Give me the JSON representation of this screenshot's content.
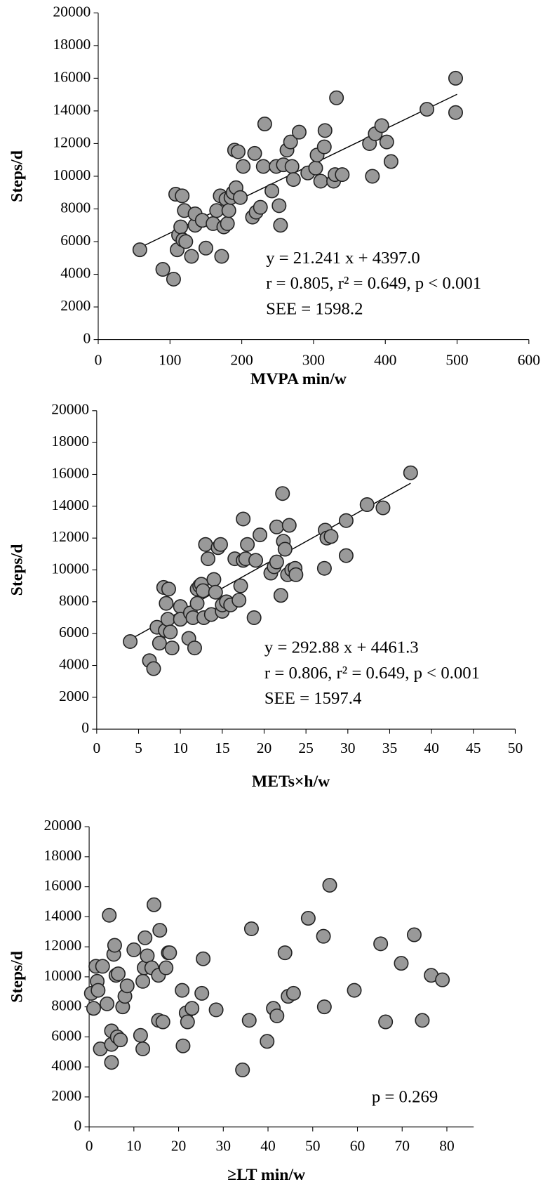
{
  "chart_data": [
    {
      "type": "scatter",
      "x_label": "MVPA min/w",
      "y_label": "Steps/d",
      "annotations": [
        "y = 21.241 x + 4397.0",
        "r = 0.805, r² = 0.649, p < 0.001",
        "SEE = 1598.2"
      ],
      "color": "#999999",
      "xlim": [
        0,
        600
      ],
      "xticks": [
        0,
        100,
        200,
        300,
        400,
        500,
        600
      ],
      "ylim": [
        0,
        20000
      ],
      "yticks": [
        0,
        2000,
        4000,
        6000,
        8000,
        10000,
        12000,
        14000,
        16000,
        18000,
        20000
      ],
      "trendline": {
        "slope": 21.241,
        "intercept": 4397.0,
        "x": [
          58,
          500
        ]
      },
      "x": [
        58,
        90,
        105,
        108,
        110,
        112,
        115,
        117,
        120,
        118,
        122,
        130,
        135,
        135,
        145,
        150,
        160,
        165,
        170,
        172,
        175,
        178,
        180,
        182,
        185,
        188,
        190,
        192,
        195,
        198,
        202,
        215,
        218,
        220,
        226,
        230,
        232,
        242,
        248,
        252,
        254,
        258,
        263,
        268,
        270,
        272,
        280,
        292,
        303,
        305,
        310,
        315,
        316,
        328,
        330,
        332,
        340,
        378,
        382,
        386,
        395,
        402,
        408,
        458,
        498,
        498
      ],
      "values": [
        5500,
        4300,
        3700,
        8900,
        5500,
        6400,
        6900,
        8800,
        7900,
        6100,
        6000,
        5100,
        7000,
        7700,
        7300,
        5600,
        7100,
        7900,
        8800,
        5100,
        6900,
        8600,
        7100,
        7900,
        8700,
        9000,
        11600,
        9300,
        11500,
        8700,
        10600,
        7500,
        11400,
        7800,
        8100,
        10600,
        13200,
        9100,
        10600,
        8200,
        7000,
        10700,
        11600,
        12100,
        10600,
        9800,
        12700,
        10200,
        10500,
        11300,
        9700,
        11800,
        12800,
        9700,
        10100,
        14800,
        10100,
        12000,
        10000,
        12600,
        13100,
        12100,
        10900,
        14100,
        16000,
        13900
      ]
    },
    {
      "type": "scatter",
      "x_label": "METs×h/w",
      "y_label": "Steps/d",
      "annotations": [
        "y = 292.88 x + 4461.3",
        "r = 0.806, r² = 0.649, p < 0.001",
        "SEE = 1597.4"
      ],
      "color": "#999999",
      "xlim": [
        0,
        50
      ],
      "xticks": [
        0,
        5,
        10,
        15,
        20,
        25,
        30,
        35,
        40,
        45,
        50
      ],
      "ylim": [
        0,
        20000
      ],
      "yticks": [
        0,
        2000,
        4000,
        6000,
        8000,
        10000,
        12000,
        14000,
        16000,
        18000,
        20000
      ],
      "trendline": {
        "slope": 292.88,
        "intercept": 4461.3,
        "x": [
          4,
          37.5
        ]
      },
      "x": [
        4,
        6.3,
        6.8,
        7.2,
        7.5,
        8,
        8.2,
        8.3,
        8.5,
        8.6,
        8.8,
        9,
        10,
        10,
        11,
        11.2,
        11.5,
        11.7,
        12,
        12,
        12.3,
        12.5,
        12.8,
        12.7,
        13,
        13.3,
        13.7,
        14,
        14.2,
        14.5,
        14.8,
        15,
        15,
        15.5,
        16,
        16.5,
        17,
        17.2,
        17.5,
        17.5,
        17.8,
        18,
        18.8,
        19,
        19.5,
        20.8,
        21.2,
        21.5,
        21.5,
        22,
        22.2,
        22.3,
        22.5,
        22.8,
        23,
        23.3,
        23.7,
        23.8,
        27.2,
        27.3,
        27.5,
        28,
        29.8,
        29.8,
        32.3,
        34.2,
        37.5
      ],
      "values": [
        5500,
        4300,
        3800,
        6400,
        5400,
        8900,
        6200,
        7900,
        6900,
        8800,
        6100,
        5100,
        7700,
        6900,
        5700,
        7300,
        7000,
        5100,
        7900,
        8800,
        9000,
        9100,
        7000,
        8700,
        11600,
        10700,
        7200,
        9400,
        8600,
        11400,
        11600,
        7400,
        7800,
        8000,
        7800,
        10700,
        8100,
        9000,
        10600,
        13200,
        10700,
        11600,
        7000,
        10600,
        12200,
        9800,
        10200,
        12700,
        10500,
        8400,
        14800,
        11800,
        11300,
        9700,
        12800,
        10000,
        10100,
        9700,
        10100,
        12500,
        12000,
        12100,
        13100,
        10900,
        14100,
        13900,
        16100
      ]
    },
    {
      "type": "scatter",
      "x_label": "≥LT  min/w",
      "y_label": "Steps/d",
      "annotations": [
        "p = 0.269"
      ],
      "color": "#999999",
      "xlim": [
        0,
        86
      ],
      "xticks": [
        0,
        10,
        20,
        30,
        40,
        50,
        60,
        70,
        80
      ],
      "ylim": [
        0,
        20000
      ],
      "yticks": [
        0,
        2000,
        4000,
        6000,
        8000,
        10000,
        12000,
        14000,
        16000,
        18000,
        20000
      ],
      "x": [
        0.5,
        1,
        1.5,
        1.8,
        2,
        2.5,
        3,
        4,
        4.5,
        5,
        5,
        5,
        5.5,
        5.7,
        6,
        6.3,
        6.5,
        7,
        7.5,
        8,
        8.5,
        10,
        11.5,
        12,
        12,
        12.3,
        12.5,
        13,
        14,
        14.5,
        15.5,
        15.5,
        15.8,
        16.5,
        17.2,
        17.7,
        18,
        20.8,
        21,
        21.7,
        22,
        23,
        25.2,
        25.5,
        28.4,
        34.3,
        35.8,
        36.3,
        39.8,
        41.2,
        42,
        43.8,
        44.5,
        45.7,
        49,
        52.4,
        52.6,
        53.8,
        59.3,
        65.2,
        66.3,
        69.8,
        72.7,
        74.5,
        76.5,
        79
      ],
      "values": [
        8900,
        7900,
        10700,
        9700,
        9100,
        5200,
        10700,
        8200,
        14100,
        6400,
        5500,
        4300,
        11500,
        12100,
        10100,
        6000,
        10200,
        5800,
        8000,
        8700,
        9400,
        11800,
        6100,
        9700,
        5200,
        10600,
        12600,
        11400,
        10600,
        14800,
        10100,
        7100,
        13100,
        7000,
        10600,
        11600,
        11600,
        9100,
        5400,
        7600,
        7000,
        7900,
        8900,
        11200,
        7800,
        3800,
        7100,
        13200,
        5700,
        7900,
        7400,
        11600,
        8700,
        8900,
        13900,
        12700,
        8000,
        16100,
        9100,
        12200,
        7000,
        10900,
        12800,
        7100,
        10100,
        9800
      ]
    }
  ]
}
